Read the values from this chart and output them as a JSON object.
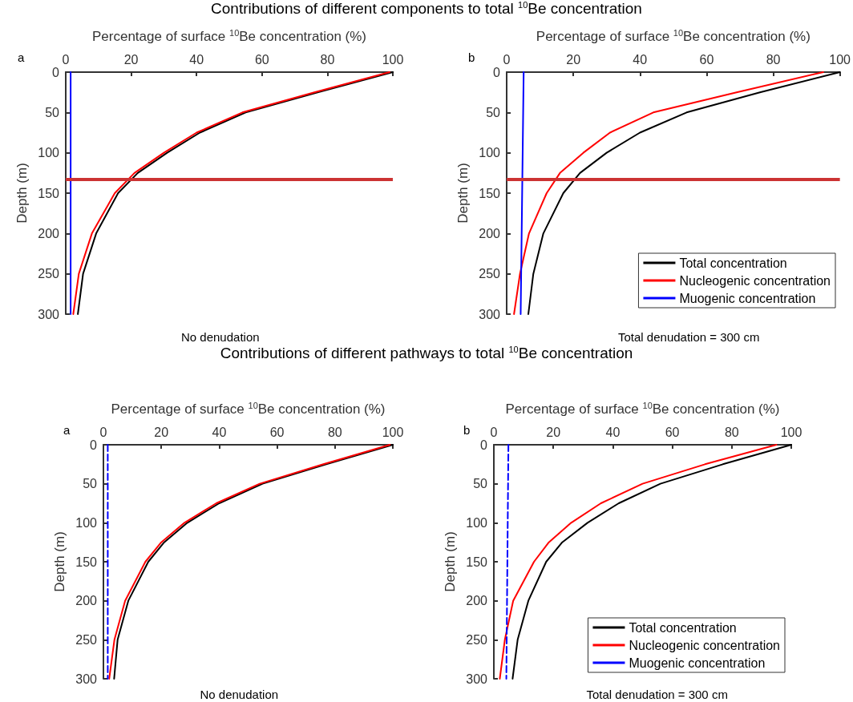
{
  "chart_data": [
    {
      "type": "line",
      "title": "Contributions of different components to total $^{10}$Be concentration",
      "xlabel": "Percentage of surface $^{10}$Be concentration (%)",
      "ylabel": "Depth (m)",
      "annotations": [
        "a",
        "No denudation"
      ],
      "xlim": [
        0,
        100
      ],
      "xticks": [
        0,
        20,
        40,
        60,
        80,
        100
      ],
      "ylim": [
        300,
        0
      ],
      "yticks": [
        0,
        50,
        100,
        150,
        200,
        250,
        300
      ],
      "grid": false,
      "legend": false,
      "series": [
        {
          "color": "#000000",
          "x": [
            100,
            77,
            55,
            41,
            31,
            22,
            16,
            9.3,
            5.3,
            3.7
          ],
          "values": [
            0,
            25,
            50,
            75,
            100,
            125,
            150,
            200,
            250,
            300
          ]
        },
        {
          "color": "#ff0000",
          "x": [
            99,
            76,
            54,
            40,
            30,
            21,
            15,
            8,
            4,
            2.3
          ],
          "values": [
            0,
            25,
            50,
            75,
            100,
            125,
            150,
            200,
            250,
            300
          ]
        },
        {
          "color": "#0000ff",
          "x": [
            1.5,
            1.5
          ],
          "values": [
            0,
            300
          ]
        }
      ],
      "ref_lines": [
        {
          "axis": "y",
          "value": 133,
          "color": "#cc3333"
        }
      ]
    },
    {
      "type": "line",
      "xlabel": "Percentage of surface $^{10}$Be concentration (%)",
      "ylabel": "Depth (m)",
      "annotations": [
        "b",
        "Total denudation = 300 cm"
      ],
      "xlim": [
        0,
        100
      ],
      "xticks": [
        0,
        20,
        40,
        60,
        80,
        100
      ],
      "ylim": [
        300,
        0
      ],
      "yticks": [
        0,
        50,
        100,
        150,
        200,
        250,
        300
      ],
      "grid": false,
      "legend": "bottom right",
      "series": [
        {
          "name": "Total concentration",
          "color": "#000000",
          "x": [
            100,
            76,
            54,
            40,
            30,
            22,
            17,
            11,
            8,
            6.5
          ],
          "values": [
            0,
            25,
            50,
            75,
            100,
            125,
            150,
            200,
            250,
            300
          ]
        },
        {
          "name": "Nucleogenic concentration",
          "color": "#ff0000",
          "x": [
            95,
            69,
            44,
            31,
            23,
            16,
            12,
            6.7,
            4,
            2.2
          ],
          "values": [
            0,
            25,
            50,
            75,
            100,
            125,
            150,
            200,
            250,
            300
          ]
        },
        {
          "name": "Muogenic concentration",
          "color": "#0000ff",
          "x": [
            5.1,
            4.2
          ],
          "values": [
            0,
            300
          ]
        }
      ],
      "ref_lines": [
        {
          "axis": "y",
          "value": 133,
          "color": "#cc3333"
        }
      ]
    },
    {
      "type": "line",
      "title": "Contributions of different pathways to total $^{10}$Be concentration",
      "xlabel": "Percentage of surface $^{10}$Be concentration (%)",
      "ylabel": "Depth (m)",
      "annotations": [
        "a",
        "No denudation"
      ],
      "xlim": [
        0,
        100
      ],
      "xticks": [
        0,
        20,
        40,
        60,
        80,
        100
      ],
      "ylim": [
        300,
        0
      ],
      "yticks": [
        0,
        50,
        100,
        150,
        200,
        250,
        300
      ],
      "grid": false,
      "legend": false,
      "series": [
        {
          "color": "#000000",
          "x": [
            100,
            77,
            55,
            40,
            29,
            21,
            15.5,
            8.6,
            4.9,
            3.7
          ],
          "values": [
            0,
            25,
            50,
            75,
            100,
            125,
            150,
            200,
            250,
            300
          ]
        },
        {
          "color": "#ff0000",
          "x": [
            99,
            76,
            54,
            39,
            28,
            20,
            14.5,
            7.5,
            3.8,
            2
          ],
          "values": [
            0,
            25,
            50,
            75,
            100,
            125,
            150,
            200,
            250,
            300
          ]
        },
        {
          "color": "#0000ff",
          "line_style": "dashed",
          "x": [
            1.5,
            1.5
          ],
          "values": [
            0,
            300
          ]
        }
      ]
    },
    {
      "type": "line",
      "xlabel": "Percentage of surface $^{10}$Be concentration (%)",
      "ylabel": "Depth (m)",
      "annotations": [
        "b",
        "Total denudation = 300 cm"
      ],
      "xlim": [
        0,
        100
      ],
      "xticks": [
        0,
        20,
        40,
        60,
        80,
        100
      ],
      "ylim": [
        300,
        0
      ],
      "yticks": [
        0,
        50,
        100,
        150,
        200,
        250,
        300
      ],
      "grid": false,
      "legend": "bottom right",
      "series": [
        {
          "name": "Total concentration",
          "color": "#000000",
          "x": [
            100,
            77,
            56,
            42,
            31.5,
            23,
            17.6,
            11.6,
            8,
            6.3
          ],
          "values": [
            0,
            25,
            50,
            75,
            100,
            125,
            150,
            200,
            250,
            300
          ]
        },
        {
          "name": "Nucleogenic concentration",
          "color": "#ff0000",
          "x": [
            95,
            71,
            50,
            36,
            26,
            18.5,
            13.5,
            6.5,
            3.7,
            2
          ],
          "values": [
            0,
            25,
            50,
            75,
            100,
            125,
            150,
            200,
            250,
            300
          ]
        },
        {
          "name": "Muogenic concentration",
          "color": "#0000ff",
          "line_style": "dashed",
          "x": [
            4.9,
            4.2
          ],
          "values": [
            0,
            300
          ]
        }
      ]
    }
  ]
}
